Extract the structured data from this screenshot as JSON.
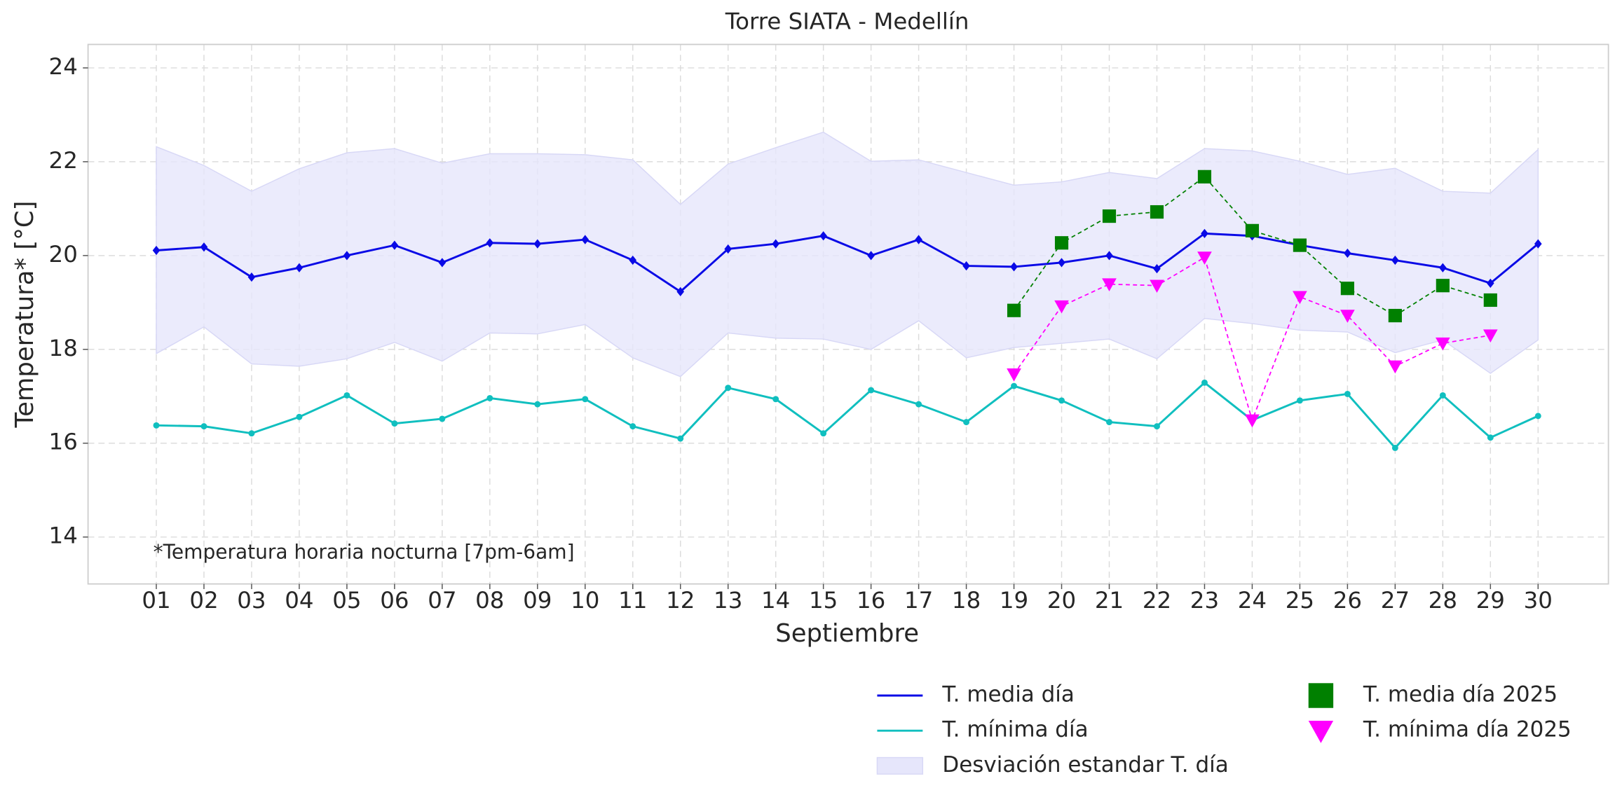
{
  "chart_data": {
    "type": "line",
    "title": "Torre SIATA - Medellín",
    "x_label": "Septiembre",
    "y_label": "Temperatura* [°C]",
    "annotation": "*Temperatura horaria nocturna [7pm-6am]",
    "categories": [
      "01",
      "02",
      "03",
      "04",
      "05",
      "06",
      "07",
      "08",
      "09",
      "10",
      "11",
      "12",
      "13",
      "14",
      "15",
      "16",
      "17",
      "18",
      "19",
      "20",
      "21",
      "22",
      "23",
      "24",
      "25",
      "26",
      "27",
      "28",
      "29",
      "30"
    ],
    "ylim": [
      13,
      24.5
    ],
    "yticks": [
      14,
      16,
      18,
      20,
      22,
      24
    ],
    "grid": true,
    "band": {
      "name": "Desviación estandar T. día",
      "color": "#e6e6fb",
      "upper": [
        22.32,
        21.92,
        21.37,
        21.85,
        22.19,
        22.28,
        21.97,
        22.17,
        22.17,
        22.15,
        22.04,
        21.09,
        21.95,
        22.3,
        22.63,
        22.01,
        22.04,
        21.77,
        21.5,
        21.57,
        21.77,
        21.64,
        22.28,
        22.23,
        22.01,
        21.73,
        21.86,
        21.37,
        21.33,
        22.26
      ],
      "lower": [
        17.91,
        18.48,
        17.69,
        17.64,
        17.8,
        18.15,
        17.75,
        18.35,
        18.33,
        18.53,
        17.82,
        17.42,
        18.35,
        18.24,
        18.22,
        18.0,
        18.61,
        17.82,
        18.04,
        18.13,
        18.22,
        17.8,
        18.66,
        18.55,
        18.41,
        18.37,
        17.93,
        18.2,
        17.49,
        18.2
      ]
    },
    "series": [
      {
        "name": "T. media día",
        "color": "#0a0ae6",
        "marker": "diamond",
        "linestyle": "solid",
        "values": [
          20.11,
          20.18,
          19.54,
          19.74,
          20.0,
          20.22,
          19.85,
          20.27,
          20.25,
          20.34,
          19.9,
          19.23,
          20.14,
          20.25,
          20.42,
          20.0,
          20.34,
          19.78,
          19.76,
          19.85,
          20.0,
          19.72,
          20.47,
          20.42,
          20.22,
          20.05,
          19.9,
          19.74,
          19.41,
          20.25
        ]
      },
      {
        "name": "T. mínima día",
        "color": "#10bfbf",
        "marker": "circle",
        "linestyle": "solid",
        "values": [
          16.38,
          16.36,
          16.21,
          16.56,
          17.02,
          16.42,
          16.52,
          16.96,
          16.83,
          16.94,
          16.36,
          16.1,
          17.18,
          16.94,
          16.21,
          17.13,
          16.83,
          16.45,
          17.22,
          16.91,
          16.45,
          16.36,
          17.29,
          16.49,
          16.91,
          17.05,
          15.9,
          17.02,
          16.12,
          16.58
        ]
      },
      {
        "name": "T. media día 2025",
        "color": "#008000",
        "marker": "square",
        "linestyle": "dashed",
        "values": [
          null,
          null,
          null,
          null,
          null,
          null,
          null,
          null,
          null,
          null,
          null,
          null,
          null,
          null,
          null,
          null,
          null,
          null,
          18.83,
          20.27,
          20.84,
          20.93,
          21.68,
          20.53,
          20.22,
          19.3,
          18.72,
          19.36,
          19.05,
          null
        ]
      },
      {
        "name": "T. mínima día 2025",
        "color": "#ff00ff",
        "marker": "triangle-down",
        "linestyle": "dashed",
        "values": [
          null,
          null,
          null,
          null,
          null,
          null,
          null,
          null,
          null,
          null,
          null,
          null,
          null,
          null,
          null,
          null,
          null,
          null,
          17.47,
          18.92,
          19.39,
          19.36,
          19.96,
          16.49,
          19.12,
          18.72,
          17.64,
          18.13,
          18.3,
          null
        ]
      }
    ]
  }
}
